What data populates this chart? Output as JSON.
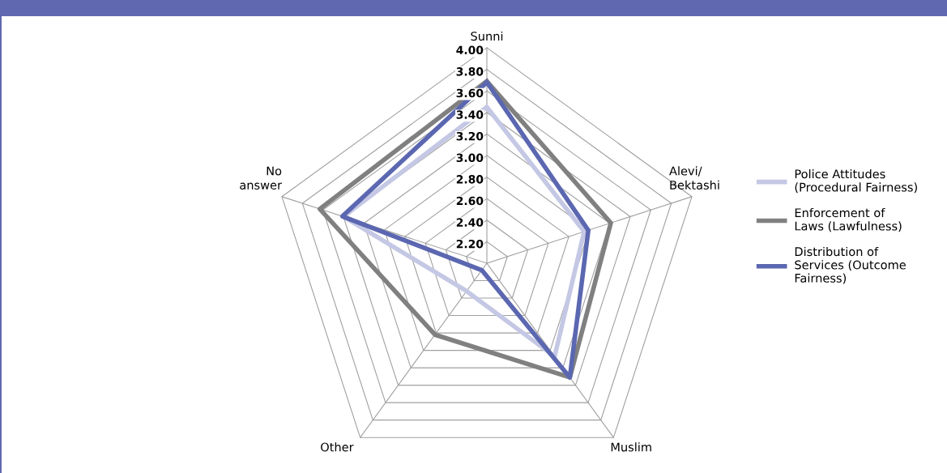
{
  "chart_data": {
    "type": "radar",
    "categories": [
      "Sunni",
      "Alevi/\nBektashi",
      "Muslim",
      "Other",
      "No\nanswer"
    ],
    "series": [
      {
        "name": "Police Attitudes\n(Procedural Fairness)",
        "color": "#c5c8e4",
        "values": [
          3.45,
          2.95,
          3.07,
          2.32,
          3.4
        ]
      },
      {
        "name": "Enforcement of\nLaws (Lawfulness)",
        "color": "#808080",
        "values": [
          3.69,
          3.21,
          3.31,
          2.82,
          3.63
        ]
      },
      {
        "name": "Distribution of\nServices (Outcome\nFairness)",
        "color": "#5b67b0",
        "values": [
          3.68,
          2.99,
          3.31,
          2.08,
          3.41
        ]
      }
    ],
    "ylim": [
      2.0,
      4.0
    ],
    "yticks": [
      {
        "value": 2.2,
        "label": "2.20"
      },
      {
        "value": 2.4,
        "label": "2.40"
      },
      {
        "value": 2.6,
        "label": "2.60"
      },
      {
        "value": 2.8,
        "label": "2.80"
      },
      {
        "value": 3.0,
        "label": "3.00"
      },
      {
        "value": 3.2,
        "label": "3.20"
      },
      {
        "value": 3.4,
        "label": "3.40"
      },
      {
        "value": 3.6,
        "label": "3.60"
      },
      {
        "value": 3.8,
        "label": "3.80"
      },
      {
        "value": 4.0,
        "label": "4.00"
      }
    ],
    "grid": true,
    "legend": "right",
    "marker": "none",
    "line_style": "solid"
  }
}
